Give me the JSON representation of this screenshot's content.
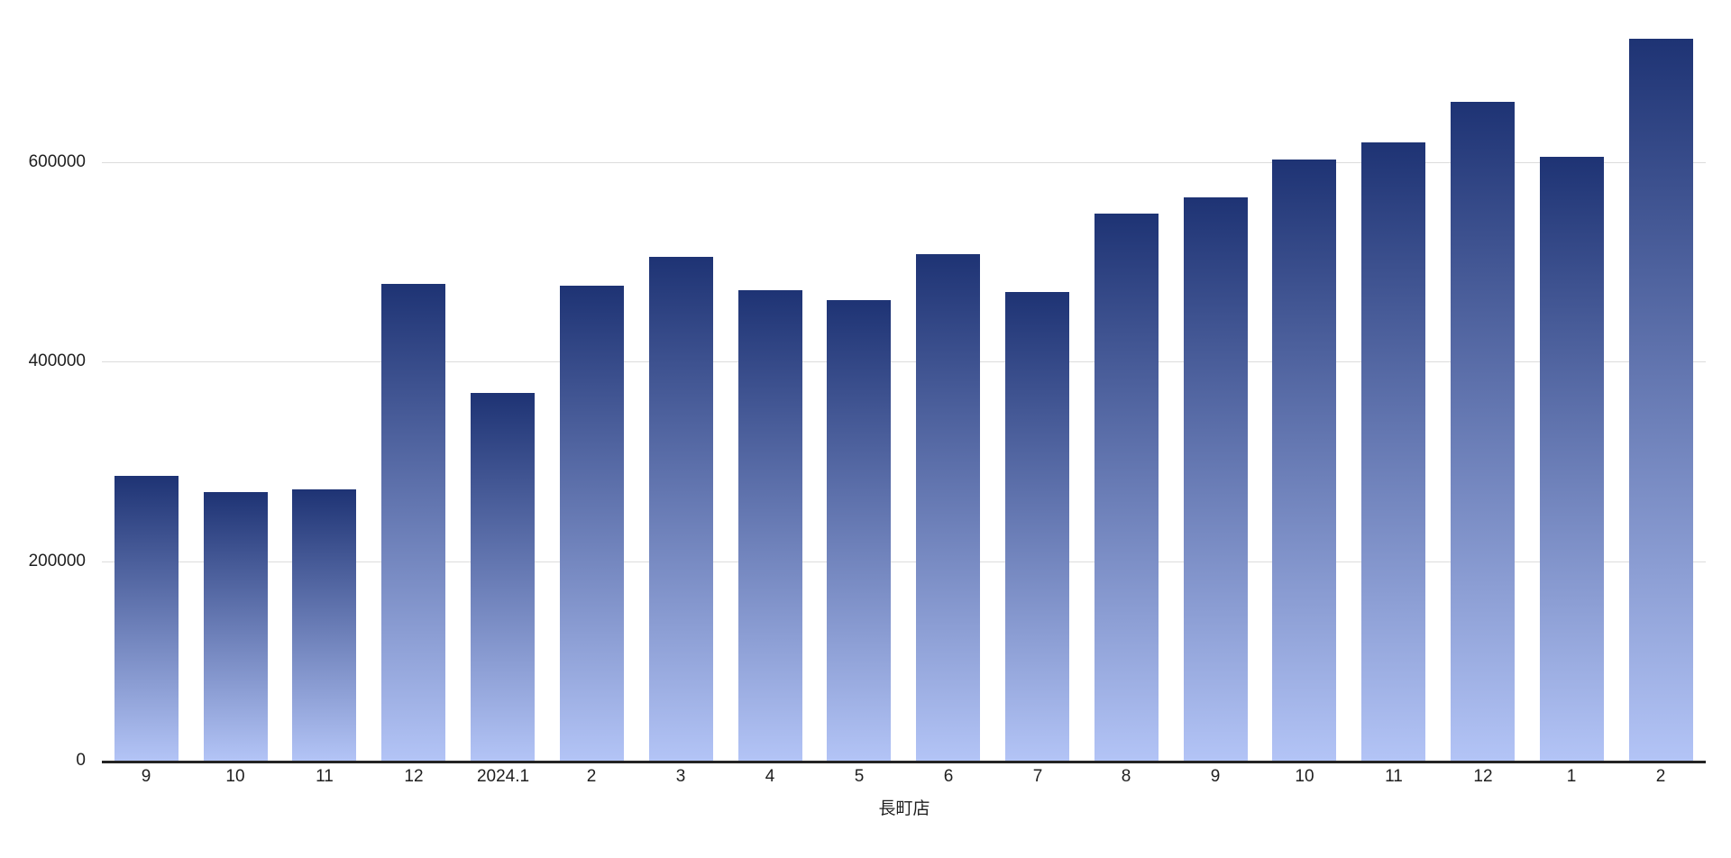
{
  "chart_data": {
    "type": "bar",
    "title": "",
    "xlabel": "長町店",
    "ylabel": "",
    "categories": [
      "9",
      "10",
      "11",
      "12",
      "2024.1",
      "2",
      "3",
      "4",
      "5",
      "6",
      "7",
      "8",
      "9",
      "10",
      "11",
      "12",
      "1",
      "2"
    ],
    "series": [
      {
        "name": "長町店",
        "values": [
          286000,
          269000,
          272000,
          478000,
          369000,
          476000,
          505000,
          472000,
          462000,
          508000,
          470000,
          549000,
          565000,
          603000,
          620000,
          661000,
          606000,
          724000
        ]
      }
    ],
    "y_ticks": [
      {
        "label": "0",
        "value": 0
      },
      {
        "label": "200000",
        "value": 200000
      },
      {
        "label": "400000",
        "value": 400000
      },
      {
        "label": "600000",
        "value": 600000
      }
    ],
    "ylim": [
      0,
      745000
    ],
    "grid": true,
    "legend_position": "none",
    "colors": {
      "bar_gradient_top": "#1e3374",
      "bar_gradient_bottom": "#b3c4f6",
      "gridline": "#dcdcdc",
      "axis_line": "#242424",
      "label_text": "#1f1f1f",
      "background": "#ffffff"
    }
  }
}
